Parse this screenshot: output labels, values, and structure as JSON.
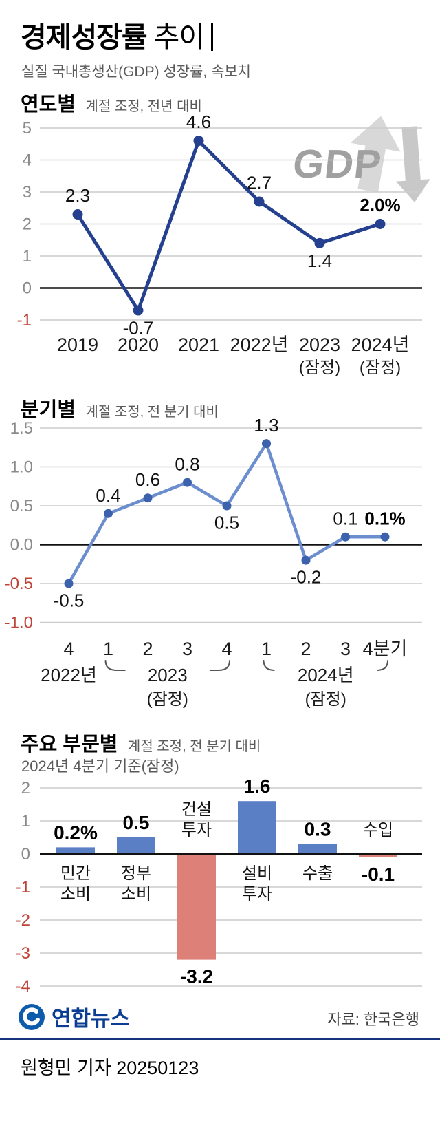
{
  "header": {
    "title_bold": "경제성장률",
    "title_light": "추이",
    "subtitle": "실질 국내총생산(GDP) 성장률, 속보치"
  },
  "gdp_icon": {
    "text": "GDP"
  },
  "colors": {
    "grid": "#cccccc",
    "axis_zero": "#111111",
    "tick_gray": "#8a8a8a",
    "tick_negative": "#bf4338",
    "rule_blue": "#15337f",
    "logo_blue": "#0b3e92",
    "brace": "#555555"
  },
  "chart_data": [
    {
      "type": "line",
      "title": "연도별",
      "subtitle": "계절 조정, 전년 대비",
      "categories": [
        "2019",
        "2020",
        "2021",
        "2022년",
        "2023",
        "2024년"
      ],
      "sub_labels": [
        "",
        "",
        "",
        "",
        "(잠정)",
        "(잠정)"
      ],
      "values": [
        2.3,
        -0.7,
        4.6,
        2.7,
        1.4,
        2.0
      ],
      "point_labels": [
        "2.3",
        "-0.7",
        "4.6",
        "2.7",
        "1.4",
        "2.0%"
      ],
      "label_positions": [
        "above",
        "below",
        "above",
        "above",
        "below",
        "above"
      ],
      "bold_last_label": true,
      "ylim": [
        -1,
        5
      ],
      "yticks": [
        5,
        4,
        3,
        2,
        1,
        0,
        -1
      ],
      "ytick_labels": [
        "5",
        "4",
        "3",
        "2",
        "1",
        "0",
        "-1"
      ],
      "line_color": "#24408e",
      "dot_color": "#24408e",
      "grid": true,
      "legend": "none"
    },
    {
      "type": "line",
      "title": "분기별",
      "subtitle": "계절 조정, 전 분기 대비",
      "categories": [
        "4",
        "1",
        "2",
        "3",
        "4",
        "1",
        "2",
        "3",
        "4분기"
      ],
      "values": [
        -0.5,
        0.4,
        0.6,
        0.8,
        0.5,
        1.3,
        -0.2,
        0.1,
        0.1
      ],
      "point_labels": [
        "-0.5",
        "0.4",
        "0.6",
        "0.8",
        "0.5",
        "1.3",
        "-0.2",
        "0.1",
        "0.1%"
      ],
      "label_positions": [
        "below",
        "above",
        "above",
        "above",
        "below",
        "above",
        "below",
        "above",
        "above"
      ],
      "bold_last_label": true,
      "ylim": [
        -1.0,
        1.5
      ],
      "yticks": [
        1.5,
        1.0,
        0.5,
        0.0,
        -0.5,
        -1.0
      ],
      "ytick_labels": [
        "1.5",
        "1.0",
        "0.5",
        "0.0",
        "-0.5",
        "-1.0"
      ],
      "groups": [
        {
          "label": "2022년",
          "from": 0,
          "to": 0,
          "sub": ""
        },
        {
          "label": "2023",
          "from": 1,
          "to": 4,
          "sub": "(잠정)"
        },
        {
          "label": "2024년",
          "from": 5,
          "to": 8,
          "sub": "(잠정)"
        }
      ],
      "line_color": "#6c8ecf",
      "dot_color": "#3c62ad",
      "grid": true,
      "legend": "none"
    },
    {
      "type": "bar",
      "title": "주요 부문별",
      "subtitle": "계절 조정, 전 분기 대비",
      "note": "2024년 4분기 기준(잠정)",
      "categories": [
        "민간 소비",
        "정부 소비",
        "건설 투자",
        "설비 투자",
        "수출",
        "수입"
      ],
      "values": [
        0.2,
        0.5,
        -3.2,
        1.6,
        0.3,
        -0.1
      ],
      "value_labels": [
        "0.2%",
        "0.5",
        "-3.2",
        "1.6",
        "0.3",
        "-0.1"
      ],
      "ylim": [
        -4,
        2
      ],
      "yticks": [
        2,
        1,
        0,
        -1,
        -2,
        -3,
        -4
      ],
      "ytick_labels": [
        "2",
        "1",
        "0",
        "-1",
        "-2",
        "-3",
        "-4"
      ],
      "positive_color": "#5b7fc4",
      "negative_color": "#dd8078",
      "grid": true,
      "legend": "none"
    }
  ],
  "footer": {
    "wordmark": "연합뉴스",
    "source": "자료: 한국은행",
    "byline": "원형민 기자  20250123"
  }
}
